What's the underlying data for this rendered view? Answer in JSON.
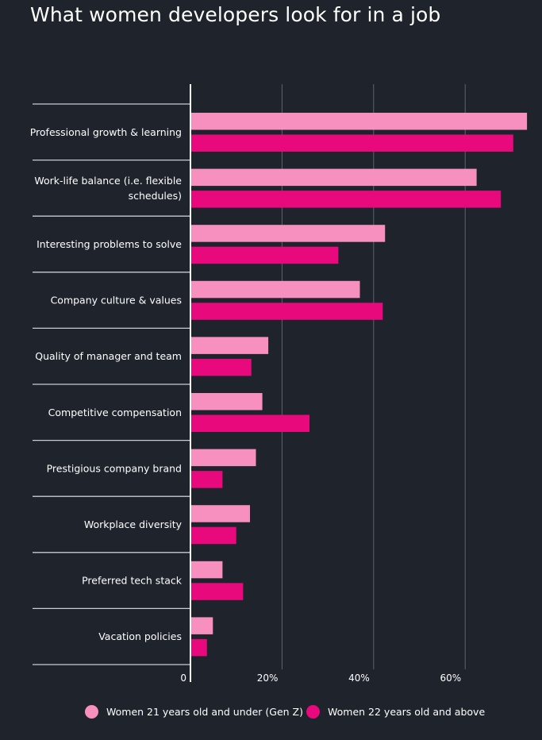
{
  "chart_data": {
    "type": "bar",
    "orientation": "horizontal",
    "title": "What women developers look for in a job",
    "categories": [
      "Professional growth & learning",
      "Work-life balance (i.e. flexible schedules)",
      "Interesting problems to solve",
      "Company culture & values",
      "Quality of manager and team",
      "Competitive compensation",
      "Prestigious company brand",
      "Workplace diversity",
      "Preferred tech stack",
      "Vacation policies"
    ],
    "category_lines": [
      [
        "Professional growth & learning"
      ],
      [
        "Work-life balance (i.e. flexible",
        "schedules)"
      ],
      [
        "Interesting problems to solve"
      ],
      [
        "Company culture & values"
      ],
      [
        "Quality of manager and team"
      ],
      [
        "Competitive compensation"
      ],
      [
        "Prestigious company brand"
      ],
      [
        "Workplace diversity"
      ],
      [
        "Preferred tech stack"
      ],
      [
        "Vacation policies"
      ]
    ],
    "series": [
      {
        "name": "Women 21 years old and under (Gen Z)",
        "color": "#f78fbf",
        "values": [
          73.5,
          62.5,
          42.5,
          37,
          17,
          15.7,
          14.3,
          13,
          7,
          4.9
        ]
      },
      {
        "name": "Women 22 years old and above",
        "color": "#e8097c",
        "values": [
          70.5,
          67.8,
          32.3,
          42,
          13.3,
          26,
          7,
          10,
          11.5,
          3.6
        ]
      }
    ],
    "xlim": [
      0,
      75
    ],
    "ticks": [
      0,
      20,
      40,
      60
    ],
    "tick_labels": [
      "0",
      "20%",
      "40%",
      "60%"
    ],
    "grid": true,
    "legend_position": "bottom"
  }
}
